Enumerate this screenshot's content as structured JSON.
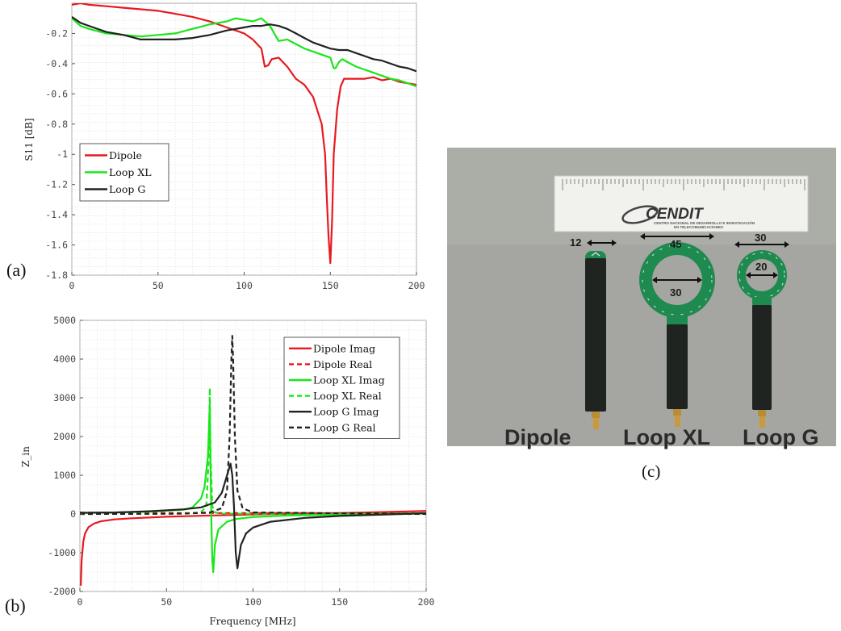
{
  "chart_data": [
    {
      "type": "line",
      "panel_label": "(a)",
      "xlabel": "",
      "ylabel": "S11 [dB]",
      "xlim": [
        0,
        200
      ],
      "ylim": [
        -1.8,
        0
      ],
      "xticks": [
        "0",
        "50",
        "100",
        "150",
        "200"
      ],
      "yticks": [
        "-0.2",
        "-0.4",
        "-0.6",
        "-0.8",
        "-1",
        "-1.2",
        "-1.4",
        "-1.6",
        "-1.8"
      ],
      "grid": true,
      "legend_position": "middle-left",
      "series": [
        {
          "name": "Dipole",
          "color": "#e8191f",
          "dash": false,
          "x": [
            0,
            5,
            10,
            20,
            30,
            40,
            50,
            60,
            70,
            80,
            90,
            100,
            105,
            110,
            112,
            114,
            116,
            120,
            125,
            130,
            135,
            140,
            145,
            147,
            148,
            149,
            150,
            151,
            152,
            154,
            156,
            158,
            160,
            165,
            170,
            175,
            180,
            185,
            190,
            195,
            200
          ],
          "y": [
            -0.01,
            -0.0,
            -0.01,
            -0.02,
            -0.03,
            -0.04,
            -0.05,
            -0.07,
            -0.09,
            -0.12,
            -0.16,
            -0.2,
            -0.24,
            -0.3,
            -0.42,
            -0.41,
            -0.37,
            -0.36,
            -0.42,
            -0.5,
            -0.54,
            -0.62,
            -0.8,
            -1.0,
            -1.3,
            -1.55,
            -1.72,
            -1.45,
            -1.0,
            -0.7,
            -0.55,
            -0.5,
            -0.5,
            -0.5,
            -0.5,
            -0.49,
            -0.51,
            -0.5,
            -0.52,
            -0.53,
            -0.54
          ]
        },
        {
          "name": "Loop XL",
          "color": "#19e619",
          "dash": false,
          "x": [
            0,
            5,
            10,
            20,
            30,
            40,
            50,
            60,
            70,
            80,
            90,
            95,
            100,
            105,
            110,
            115,
            120,
            125,
            130,
            135,
            140,
            145,
            150,
            152,
            153,
            155,
            157,
            160,
            165,
            170,
            175,
            180,
            185,
            190,
            195,
            200
          ],
          "y": [
            -0.1,
            -0.15,
            -0.17,
            -0.2,
            -0.21,
            -0.22,
            -0.21,
            -0.2,
            -0.17,
            -0.14,
            -0.12,
            -0.1,
            -0.11,
            -0.12,
            -0.1,
            -0.15,
            -0.25,
            -0.24,
            -0.27,
            -0.3,
            -0.32,
            -0.34,
            -0.36,
            -0.43,
            -0.43,
            -0.39,
            -0.37,
            -0.39,
            -0.42,
            -0.44,
            -0.46,
            -0.48,
            -0.5,
            -0.51,
            -0.53,
            -0.55
          ]
        },
        {
          "name": "Loop G",
          "color": "#222222",
          "dash": false,
          "x": [
            0,
            5,
            10,
            20,
            30,
            40,
            50,
            60,
            70,
            80,
            90,
            100,
            105,
            110,
            115,
            120,
            125,
            130,
            135,
            140,
            145,
            150,
            155,
            160,
            165,
            170,
            175,
            180,
            185,
            190,
            195,
            200
          ],
          "y": [
            -0.09,
            -0.13,
            -0.15,
            -0.19,
            -0.21,
            -0.24,
            -0.24,
            -0.24,
            -0.23,
            -0.21,
            -0.18,
            -0.16,
            -0.15,
            -0.15,
            -0.14,
            -0.15,
            -0.17,
            -0.2,
            -0.23,
            -0.26,
            -0.28,
            -0.3,
            -0.31,
            -0.31,
            -0.33,
            -0.35,
            -0.37,
            -0.38,
            -0.4,
            -0.42,
            -0.43,
            -0.45
          ]
        }
      ]
    },
    {
      "type": "line",
      "panel_label": "(b)",
      "xlabel": "Frequency [MHz]",
      "ylabel": "Z_in",
      "xlim": [
        0,
        200
      ],
      "ylim": [
        -2000,
        5000
      ],
      "xticks": [
        "0",
        "50",
        "100",
        "150",
        "200"
      ],
      "yticks": [
        "-2000",
        "-1000",
        "0",
        "1000",
        "2000",
        "3000",
        "4000",
        "5000"
      ],
      "grid": true,
      "legend_position": "top-right",
      "series": [
        {
          "name": "Dipole Imag",
          "color": "#e8191f",
          "dash": false,
          "x": [
            0.5,
            1,
            2,
            3,
            5,
            8,
            12,
            20,
            30,
            50,
            70,
            90,
            110,
            130,
            150,
            170,
            200
          ],
          "y": [
            -1850,
            -1200,
            -700,
            -500,
            -340,
            -250,
            -190,
            -140,
            -110,
            -70,
            -45,
            -25,
            -5,
            10,
            25,
            45,
            80
          ]
        },
        {
          "name": "Dipole Real",
          "color": "#e8191f",
          "dash": true,
          "x": [
            0,
            20,
            50,
            80,
            100,
            120,
            150,
            180,
            200
          ],
          "y": [
            40,
            30,
            25,
            25,
            25,
            25,
            20,
            20,
            20
          ]
        },
        {
          "name": "Loop XL Imag",
          "color": "#19e619",
          "dash": false,
          "x": [
            0,
            20,
            40,
            60,
            65,
            70,
            72,
            74,
            75,
            75.5,
            76,
            76.5,
            77,
            78,
            80,
            85,
            90,
            100,
            120,
            150,
            200
          ],
          "y": [
            30,
            40,
            60,
            110,
            170,
            400,
            700,
            1500,
            2850,
            1200,
            -300,
            -1200,
            -1500,
            -800,
            -400,
            -200,
            -130,
            -80,
            -40,
            -10,
            20
          ]
        },
        {
          "name": "Loop XL Real",
          "color": "#19e619",
          "dash": true,
          "x": [
            0,
            40,
            60,
            70,
            73,
            74.5,
            75,
            75.5,
            76.5,
            78,
            82,
            100,
            200
          ],
          "y": [
            0,
            5,
            10,
            40,
            200,
            1500,
            3250,
            1500,
            200,
            40,
            10,
            5,
            0
          ]
        },
        {
          "name": "Loop G Imag",
          "color": "#222222",
          "dash": false,
          "x": [
            0,
            20,
            40,
            60,
            70,
            78,
            82,
            85,
            87,
            88,
            89,
            90,
            91,
            93,
            96,
            100,
            110,
            130,
            150,
            200
          ],
          "y": [
            30,
            40,
            70,
            120,
            170,
            300,
            550,
            1000,
            1300,
            1000,
            200,
            -1000,
            -1400,
            -800,
            -500,
            -350,
            -200,
            -100,
            -50,
            20
          ]
        },
        {
          "name": "Loop G Real",
          "color": "#222222",
          "dash": true,
          "x": [
            0,
            40,
            60,
            75,
            82,
            85,
            86.5,
            87.5,
            88,
            88.5,
            89.5,
            91,
            94,
            100,
            200
          ],
          "y": [
            0,
            5,
            10,
            40,
            150,
            600,
            2000,
            4000,
            4600,
            4000,
            2000,
            600,
            150,
            40,
            0
          ]
        }
      ]
    }
  ],
  "photo": {
    "panel_label": "(c)",
    "ruler_logo": "CENDIT",
    "ruler_subtext_1": "CENTRO NACIONAL DE DESARROLLO E INVESTIGACIÓN",
    "ruler_subtext_2": "EN TELECOMUNICACIONES",
    "dims": {
      "dipole_width": "12",
      "loopxl_outer": "45",
      "loopxl_inner": "30",
      "loopg_outer": "30",
      "loopg_inner": "20"
    },
    "labels": {
      "dipole": "Dipole",
      "loop_xl": "Loop XL",
      "loop_g": "Loop G"
    },
    "colors": {
      "background": "#a5a6a1",
      "pcb_green": "#1f8a4f",
      "black_body": "#1f2420",
      "sma_gold": "#c89a3c",
      "ruler": "#f1f1ee"
    }
  }
}
